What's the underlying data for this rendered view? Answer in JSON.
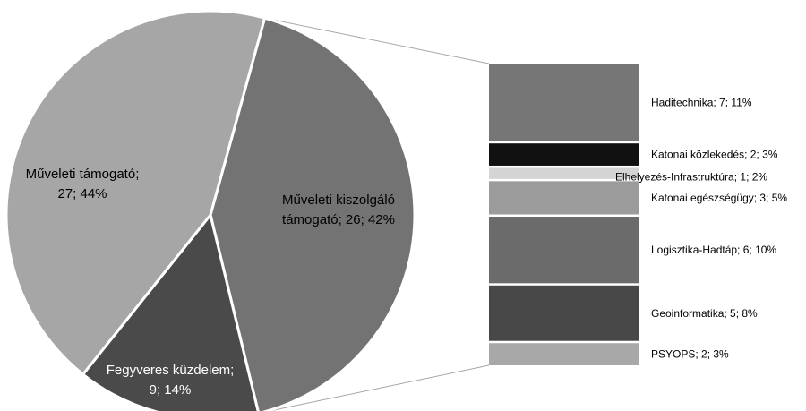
{
  "chart_data": [
    {
      "type": "pie",
      "slices": [
        {
          "label_lines": [
            "Műveleti kiszolgáló",
            "támogató; 26; 42%"
          ],
          "category": "Műveleti kiszolgáló támogató",
          "value": 26,
          "percent": 42,
          "color": "#737373",
          "text_color": "#000000",
          "exploded_into_bar": true
        },
        {
          "label_lines": [
            "Fegyveres küzdelem;",
            "9; 14%"
          ],
          "category": "Fegyveres küzdelem",
          "value": 9,
          "percent": 14,
          "color": "#4a4a4a",
          "text_color": "#ffffff"
        },
        {
          "label_lines": [
            "Műveleti támogató;",
            "27; 44%"
          ],
          "category": "Műveleti támogató",
          "value": 27,
          "percent": 44,
          "color": "#a6a6a6",
          "text_color": "#000000"
        }
      ]
    },
    {
      "type": "bar",
      "orientation": "stacked-vertical",
      "items": [
        {
          "label": "Haditechnika; 7; 11%",
          "category": "Haditechnika",
          "value": 7,
          "percent": 11,
          "color": "#767676"
        },
        {
          "label": "Katonai közlekedés; 2; 3%",
          "category": "Katonai közlekedés",
          "value": 2,
          "percent": 3,
          "color": "#111111"
        },
        {
          "label": "Elhelyezés-Infrastruktúra; 1; 2%",
          "category": "Elhelyezés-Infrastruktúra",
          "value": 1,
          "percent": 2,
          "color": "#d4d4d4"
        },
        {
          "label": "Katonai egészségügy; 3; 5%",
          "category": "Katonai egészségügy",
          "value": 3,
          "percent": 5,
          "color": "#9b9b9b"
        },
        {
          "label": "Logisztika-Hadtáp; 6; 10%",
          "category": "Logisztika-Hadtáp",
          "value": 6,
          "percent": 10,
          "color": "#6b6b6b"
        },
        {
          "label": "Geoinformatika; 5; 8%",
          "category": "Geoinformatika",
          "value": 5,
          "percent": 8,
          "color": "#484848"
        },
        {
          "label": "PSYOPS; 2; 3%",
          "category": "PSYOPS",
          "value": 2,
          "percent": 3,
          "color": "#a8a8a8"
        }
      ]
    }
  ]
}
